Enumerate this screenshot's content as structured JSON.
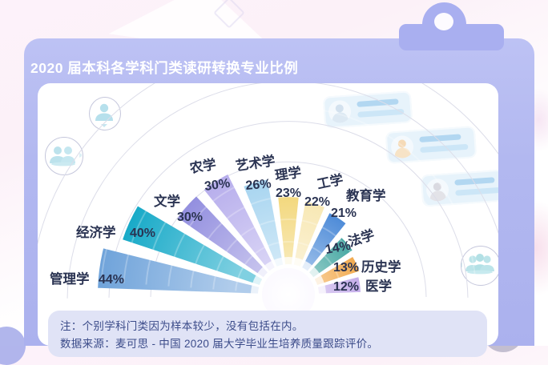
{
  "page": {
    "title": "2020 届本科各学科门类读研转换专业比例"
  },
  "chart_data": {
    "type": "radial-fan",
    "title": "2020 届本科各学科门类读研转换专业比例",
    "unit": "%",
    "categories": [
      "管理学",
      "经济学",
      "文学",
      "农学",
      "艺术学",
      "理学",
      "工学",
      "教育学",
      "法学",
      "历史学",
      "医学"
    ],
    "values": [
      44,
      40,
      30,
      30,
      26,
      23,
      22,
      21,
      14,
      13,
      12
    ],
    "colors": [
      "#6fa3da",
      "#18aac8",
      "#938fdf",
      "#b7aeec",
      "#a8d5f0",
      "#f3d87e",
      "#f8e8b4",
      "#4f8cd8",
      "#47a8a3",
      "#f2ab50",
      "#c5aeea"
    ],
    "legend": false,
    "grid": "concentric-arcs"
  },
  "notes": {
    "note": "注：个别学科门类因为样本较少，没有包括在内。",
    "source": "数据来源：麦可思 - 中国 2020 届大学毕业生培养质量跟踪评价。"
  },
  "theme": {
    "card_color": "#b2b8f0",
    "note_bg": "#e0e3f6",
    "note_text": "#3c4c8a",
    "label_text": "#2a3352",
    "title_text": "#ffffff"
  }
}
